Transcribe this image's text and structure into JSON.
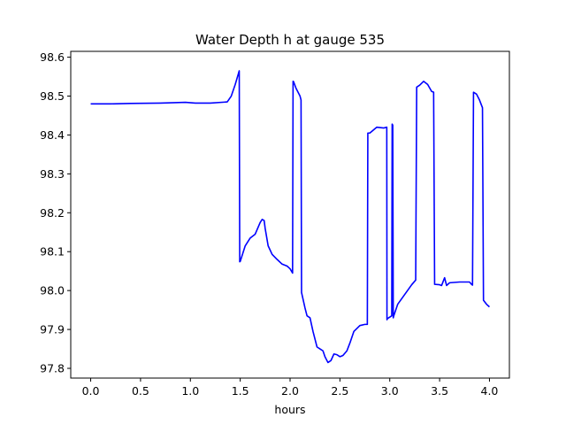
{
  "chart_data": {
    "type": "line",
    "title": "Water Depth h at gauge 535",
    "xlabel": "hours",
    "ylabel": "",
    "xlim": [
      -0.2,
      4.2
    ],
    "ylim": [
      97.775,
      98.615
    ],
    "xticks": [
      0.0,
      0.5,
      1.0,
      1.5,
      2.0,
      2.5,
      3.0,
      3.5,
      4.0
    ],
    "xtick_labels": [
      "0.0",
      "0.5",
      "1.0",
      "1.5",
      "2.0",
      "2.5",
      "3.0",
      "3.5",
      "4.0"
    ],
    "yticks": [
      97.8,
      97.9,
      98.0,
      98.1,
      98.2,
      98.3,
      98.4,
      98.5,
      98.6
    ],
    "ytick_labels": [
      "97.8",
      "97.9",
      "98.0",
      "98.1",
      "98.2",
      "98.3",
      "98.4",
      "98.5",
      "98.6"
    ],
    "grid": false,
    "series": [
      {
        "color": "#0000ff",
        "x": [
          0.0,
          0.2,
          0.4,
          0.7,
          0.95,
          1.05,
          1.2,
          1.37,
          1.41,
          1.45,
          1.49,
          1.495,
          1.5,
          1.55,
          1.6,
          1.65,
          1.7,
          1.72,
          1.74,
          1.75,
          1.78,
          1.82,
          1.87,
          1.92,
          1.97,
          2.0,
          2.025,
          2.03,
          2.035,
          2.06,
          2.1,
          2.11,
          2.115,
          2.15,
          2.17,
          2.2,
          2.23,
          2.27,
          2.3,
          2.33,
          2.35,
          2.38,
          2.41,
          2.44,
          2.47,
          2.5,
          2.53,
          2.57,
          2.6,
          2.64,
          2.7,
          2.75,
          2.775,
          2.78,
          2.8,
          2.87,
          2.94,
          2.97,
          2.972,
          2.977,
          3.02,
          3.024,
          3.03,
          3.035,
          3.04,
          3.08,
          3.15,
          3.22,
          3.26,
          3.27,
          3.3,
          3.34,
          3.38,
          3.42,
          3.44,
          3.45,
          3.5,
          3.52,
          3.55,
          3.57,
          3.6,
          3.7,
          3.8,
          3.82,
          3.83,
          3.84,
          3.87,
          3.9,
          3.93,
          3.94,
          3.97,
          4.0
        ],
        "y": [
          98.48,
          98.48,
          98.481,
          98.482,
          98.484,
          98.482,
          98.482,
          98.485,
          98.5,
          98.53,
          98.565,
          98.074,
          98.075,
          98.115,
          98.135,
          98.145,
          98.175,
          98.183,
          98.18,
          98.16,
          98.115,
          98.093,
          98.08,
          98.068,
          98.063,
          98.056,
          98.045,
          98.538,
          98.537,
          98.52,
          98.5,
          98.49,
          97.995,
          97.955,
          97.935,
          97.93,
          97.895,
          97.855,
          97.85,
          97.845,
          97.83,
          97.815,
          97.82,
          97.837,
          97.835,
          97.83,
          97.833,
          97.845,
          97.865,
          97.895,
          97.91,
          97.913,
          97.913,
          98.405,
          98.405,
          98.42,
          98.418,
          98.42,
          97.925,
          97.928,
          97.935,
          98.428,
          98.425,
          97.93,
          97.935,
          97.965,
          97.99,
          98.015,
          98.027,
          98.523,
          98.528,
          98.538,
          98.53,
          98.512,
          98.51,
          98.016,
          98.015,
          98.013,
          98.033,
          98.013,
          98.02,
          98.022,
          98.022,
          98.016,
          98.014,
          98.51,
          98.505,
          98.49,
          98.47,
          97.975,
          97.965,
          97.958
        ]
      }
    ]
  }
}
